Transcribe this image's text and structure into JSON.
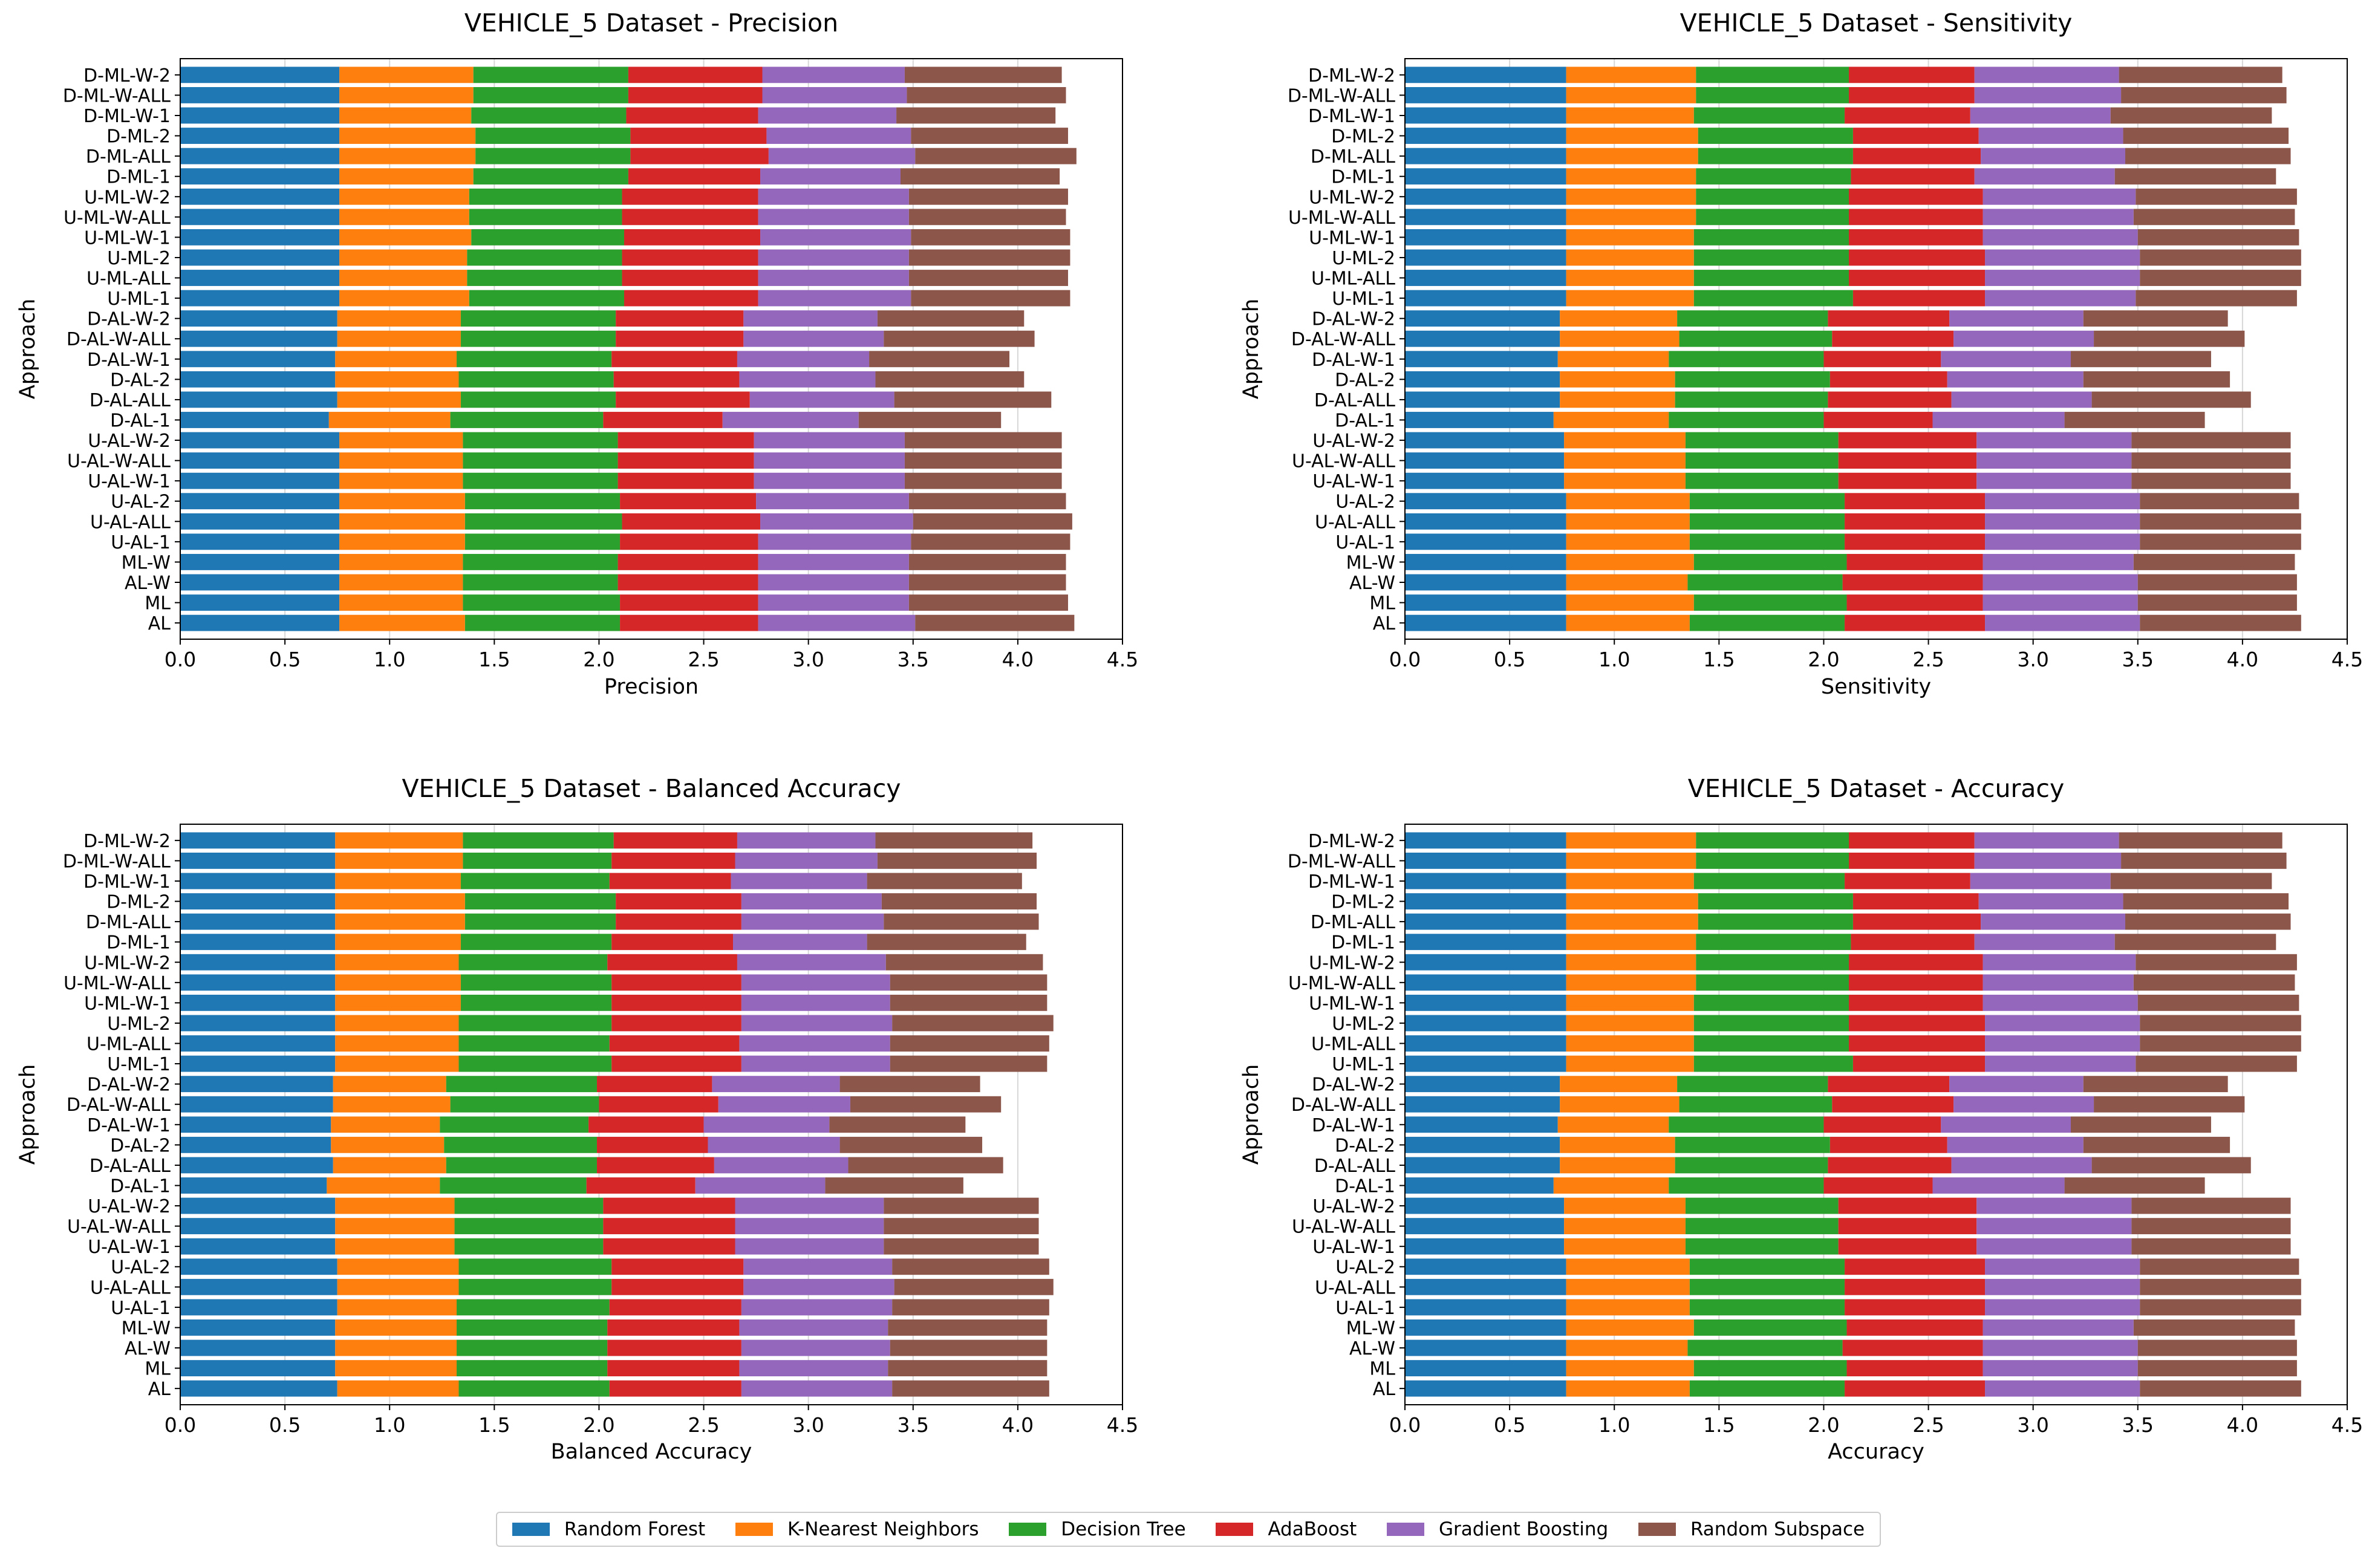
{
  "colors": [
    "#1f77b4",
    "#ff7f0e",
    "#2ca02c",
    "#d62728",
    "#9467bd",
    "#8c564b"
  ],
  "chart_data": [
    {
      "type": "stacked-barh",
      "title": "VEHICLE_5 Dataset - Precision",
      "xlabel": "Precision",
      "ylabel": "Approach",
      "xlim": [
        0,
        4.5
      ],
      "xticks": [
        "0.0",
        "0.5",
        "1.0",
        "1.5",
        "2.0",
        "2.5",
        "3.0",
        "3.5",
        "4.0",
        "4.5"
      ],
      "grid": "vertical",
      "categories": [
        "AL",
        "ML",
        "AL-W",
        "ML-W",
        "U-AL-1",
        "U-AL-ALL",
        "U-AL-2",
        "U-AL-W-1",
        "U-AL-W-ALL",
        "U-AL-W-2",
        "D-AL-1",
        "D-AL-ALL",
        "D-AL-2",
        "D-AL-W-1",
        "D-AL-W-ALL",
        "D-AL-W-2",
        "U-ML-1",
        "U-ML-ALL",
        "U-ML-2",
        "U-ML-W-1",
        "U-ML-W-ALL",
        "U-ML-W-2",
        "D-ML-1",
        "D-ML-ALL",
        "D-ML-2",
        "D-ML-W-1",
        "D-ML-W-ALL",
        "D-ML-W-2"
      ],
      "series": [
        {
          "name": "Random Forest",
          "values": [
            0.76,
            0.76,
            0.76,
            0.76,
            0.76,
            0.76,
            0.76,
            0.76,
            0.76,
            0.76,
            0.71,
            0.75,
            0.74,
            0.74,
            0.75,
            0.75,
            0.76,
            0.76,
            0.76,
            0.76,
            0.76,
            0.76,
            0.76,
            0.76,
            0.76,
            0.76,
            0.76,
            0.76
          ]
        },
        {
          "name": "K-Nearest Neighbors",
          "values": [
            0.6,
            0.59,
            0.59,
            0.59,
            0.6,
            0.6,
            0.6,
            0.59,
            0.59,
            0.59,
            0.58,
            0.59,
            0.59,
            0.58,
            0.59,
            0.59,
            0.62,
            0.61,
            0.61,
            0.63,
            0.62,
            0.62,
            0.64,
            0.65,
            0.65,
            0.63,
            0.64,
            0.64
          ]
        },
        {
          "name": "Decision Tree",
          "values": [
            0.74,
            0.75,
            0.74,
            0.74,
            0.74,
            0.75,
            0.74,
            0.74,
            0.74,
            0.74,
            0.73,
            0.74,
            0.74,
            0.74,
            0.74,
            0.74,
            0.74,
            0.74,
            0.74,
            0.73,
            0.73,
            0.73,
            0.74,
            0.74,
            0.74,
            0.74,
            0.74,
            0.74
          ]
        },
        {
          "name": "AdaBoost",
          "values": [
            0.66,
            0.66,
            0.67,
            0.67,
            0.66,
            0.66,
            0.65,
            0.65,
            0.65,
            0.65,
            0.57,
            0.64,
            0.6,
            0.6,
            0.61,
            0.61,
            0.64,
            0.65,
            0.65,
            0.65,
            0.65,
            0.65,
            0.63,
            0.66,
            0.65,
            0.63,
            0.64,
            0.64
          ]
        },
        {
          "name": "Gradient Boosting",
          "values": [
            0.75,
            0.72,
            0.72,
            0.72,
            0.73,
            0.73,
            0.73,
            0.72,
            0.72,
            0.72,
            0.65,
            0.69,
            0.65,
            0.63,
            0.67,
            0.64,
            0.73,
            0.72,
            0.72,
            0.72,
            0.72,
            0.72,
            0.67,
            0.7,
            0.69,
            0.66,
            0.69,
            0.68
          ]
        },
        {
          "name": "Random Subspace",
          "values": [
            0.76,
            0.76,
            0.75,
            0.75,
            0.76,
            0.76,
            0.75,
            0.75,
            0.75,
            0.75,
            0.68,
            0.75,
            0.71,
            0.67,
            0.72,
            0.7,
            0.76,
            0.76,
            0.77,
            0.76,
            0.75,
            0.76,
            0.76,
            0.77,
            0.75,
            0.76,
            0.76,
            0.75
          ]
        }
      ]
    },
    {
      "type": "stacked-barh",
      "title": "VEHICLE_5 Dataset - Sensitivity",
      "xlabel": "Sensitivity",
      "ylabel": "Approach",
      "xlim": [
        0,
        4.5
      ],
      "xticks": [
        "0.0",
        "0.5",
        "1.0",
        "1.5",
        "2.0",
        "2.5",
        "3.0",
        "3.5",
        "4.0",
        "4.5"
      ],
      "grid": "vertical",
      "categories": [
        "AL",
        "ML",
        "AL-W",
        "ML-W",
        "U-AL-1",
        "U-AL-ALL",
        "U-AL-2",
        "U-AL-W-1",
        "U-AL-W-ALL",
        "U-AL-W-2",
        "D-AL-1",
        "D-AL-ALL",
        "D-AL-2",
        "D-AL-W-1",
        "D-AL-W-ALL",
        "D-AL-W-2",
        "U-ML-1",
        "U-ML-ALL",
        "U-ML-2",
        "U-ML-W-1",
        "U-ML-W-ALL",
        "U-ML-W-2",
        "D-ML-1",
        "D-ML-ALL",
        "D-ML-2",
        "D-ML-W-1",
        "D-ML-W-ALL",
        "D-ML-W-2"
      ],
      "series": [
        {
          "name": "Random Forest",
          "values": [
            0.77,
            0.77,
            0.77,
            0.77,
            0.77,
            0.77,
            0.77,
            0.76,
            0.76,
            0.76,
            0.71,
            0.74,
            0.74,
            0.73,
            0.74,
            0.74,
            0.77,
            0.77,
            0.77,
            0.77,
            0.77,
            0.77,
            0.77,
            0.77,
            0.77,
            0.77,
            0.77,
            0.77
          ]
        },
        {
          "name": "K-Nearest Neighbors",
          "values": [
            0.59,
            0.61,
            0.58,
            0.61,
            0.59,
            0.59,
            0.59,
            0.58,
            0.58,
            0.58,
            0.55,
            0.55,
            0.55,
            0.53,
            0.57,
            0.56,
            0.61,
            0.61,
            0.61,
            0.61,
            0.62,
            0.62,
            0.62,
            0.63,
            0.63,
            0.61,
            0.62,
            0.62
          ]
        },
        {
          "name": "Decision Tree",
          "values": [
            0.74,
            0.73,
            0.74,
            0.73,
            0.74,
            0.74,
            0.74,
            0.73,
            0.73,
            0.73,
            0.74,
            0.73,
            0.74,
            0.74,
            0.73,
            0.72,
            0.76,
            0.74,
            0.74,
            0.74,
            0.73,
            0.73,
            0.74,
            0.74,
            0.74,
            0.72,
            0.73,
            0.73
          ]
        },
        {
          "name": "AdaBoost",
          "values": [
            0.67,
            0.65,
            0.67,
            0.65,
            0.67,
            0.67,
            0.67,
            0.66,
            0.66,
            0.66,
            0.52,
            0.59,
            0.56,
            0.56,
            0.58,
            0.58,
            0.63,
            0.65,
            0.65,
            0.64,
            0.64,
            0.64,
            0.59,
            0.61,
            0.6,
            0.6,
            0.6,
            0.6
          ]
        },
        {
          "name": "Gradient Boosting",
          "values": [
            0.74,
            0.74,
            0.74,
            0.72,
            0.74,
            0.74,
            0.74,
            0.74,
            0.74,
            0.74,
            0.63,
            0.67,
            0.65,
            0.62,
            0.67,
            0.64,
            0.72,
            0.74,
            0.74,
            0.74,
            0.72,
            0.73,
            0.67,
            0.69,
            0.69,
            0.67,
            0.7,
            0.69
          ]
        },
        {
          "name": "Random Subspace",
          "values": [
            0.77,
            0.76,
            0.76,
            0.77,
            0.77,
            0.77,
            0.76,
            0.76,
            0.76,
            0.76,
            0.67,
            0.76,
            0.7,
            0.67,
            0.72,
            0.69,
            0.77,
            0.77,
            0.77,
            0.77,
            0.77,
            0.77,
            0.77,
            0.79,
            0.79,
            0.77,
            0.79,
            0.78
          ]
        }
      ]
    },
    {
      "type": "stacked-barh",
      "title": "VEHICLE_5 Dataset - Balanced Accuracy",
      "xlabel": "Balanced Accuracy",
      "ylabel": "Approach",
      "xlim": [
        0,
        4.5
      ],
      "xticks": [
        "0.0",
        "0.5",
        "1.0",
        "1.5",
        "2.0",
        "2.5",
        "3.0",
        "3.5",
        "4.0",
        "4.5"
      ],
      "grid": "vertical",
      "categories": [
        "AL",
        "ML",
        "AL-W",
        "ML-W",
        "U-AL-1",
        "U-AL-ALL",
        "U-AL-2",
        "U-AL-W-1",
        "U-AL-W-ALL",
        "U-AL-W-2",
        "D-AL-1",
        "D-AL-ALL",
        "D-AL-2",
        "D-AL-W-1",
        "D-AL-W-ALL",
        "D-AL-W-2",
        "U-ML-1",
        "U-ML-ALL",
        "U-ML-2",
        "U-ML-W-1",
        "U-ML-W-ALL",
        "U-ML-W-2",
        "D-ML-1",
        "D-ML-ALL",
        "D-ML-2",
        "D-ML-W-1",
        "D-ML-W-ALL",
        "D-ML-W-2"
      ],
      "series": [
        {
          "name": "Random Forest",
          "values": [
            0.75,
            0.74,
            0.74,
            0.74,
            0.75,
            0.75,
            0.75,
            0.74,
            0.74,
            0.74,
            0.7,
            0.73,
            0.72,
            0.72,
            0.73,
            0.73,
            0.74,
            0.74,
            0.74,
            0.74,
            0.74,
            0.74,
            0.74,
            0.74,
            0.74,
            0.74,
            0.74,
            0.74
          ]
        },
        {
          "name": "K-Nearest Neighbors",
          "values": [
            0.58,
            0.58,
            0.58,
            0.58,
            0.57,
            0.58,
            0.58,
            0.57,
            0.57,
            0.57,
            0.54,
            0.54,
            0.54,
            0.52,
            0.56,
            0.54,
            0.59,
            0.59,
            0.59,
            0.6,
            0.6,
            0.59,
            0.6,
            0.62,
            0.62,
            0.6,
            0.61,
            0.61
          ]
        },
        {
          "name": "Decision Tree",
          "values": [
            0.72,
            0.72,
            0.72,
            0.72,
            0.73,
            0.73,
            0.73,
            0.71,
            0.71,
            0.71,
            0.7,
            0.72,
            0.73,
            0.71,
            0.71,
            0.72,
            0.73,
            0.72,
            0.73,
            0.72,
            0.72,
            0.71,
            0.72,
            0.72,
            0.72,
            0.71,
            0.71,
            0.72
          ]
        },
        {
          "name": "AdaBoost",
          "values": [
            0.63,
            0.63,
            0.64,
            0.63,
            0.63,
            0.63,
            0.63,
            0.63,
            0.63,
            0.63,
            0.52,
            0.56,
            0.53,
            0.55,
            0.57,
            0.55,
            0.62,
            0.62,
            0.62,
            0.62,
            0.62,
            0.62,
            0.58,
            0.6,
            0.6,
            0.58,
            0.59,
            0.59
          ]
        },
        {
          "name": "Gradient Boosting",
          "values": [
            0.72,
            0.71,
            0.71,
            0.71,
            0.72,
            0.72,
            0.71,
            0.71,
            0.71,
            0.71,
            0.62,
            0.64,
            0.63,
            0.6,
            0.63,
            0.61,
            0.71,
            0.72,
            0.72,
            0.71,
            0.71,
            0.71,
            0.64,
            0.68,
            0.67,
            0.65,
            0.68,
            0.66
          ]
        },
        {
          "name": "Random Subspace",
          "values": [
            0.75,
            0.76,
            0.75,
            0.76,
            0.75,
            0.76,
            0.75,
            0.74,
            0.74,
            0.74,
            0.66,
            0.74,
            0.68,
            0.65,
            0.72,
            0.67,
            0.75,
            0.76,
            0.77,
            0.75,
            0.75,
            0.75,
            0.76,
            0.74,
            0.74,
            0.74,
            0.76,
            0.75
          ]
        }
      ]
    },
    {
      "type": "stacked-barh",
      "title": "VEHICLE_5 Dataset - Accuracy",
      "xlabel": "Accuracy",
      "ylabel": "Approach",
      "xlim": [
        0,
        4.5
      ],
      "xticks": [
        "0.0",
        "0.5",
        "1.0",
        "1.5",
        "2.0",
        "2.5",
        "3.0",
        "3.5",
        "4.0",
        "4.5"
      ],
      "grid": "vertical",
      "categories": [
        "AL",
        "ML",
        "AL-W",
        "ML-W",
        "U-AL-1",
        "U-AL-ALL",
        "U-AL-2",
        "U-AL-W-1",
        "U-AL-W-ALL",
        "U-AL-W-2",
        "D-AL-1",
        "D-AL-ALL",
        "D-AL-2",
        "D-AL-W-1",
        "D-AL-W-ALL",
        "D-AL-W-2",
        "U-ML-1",
        "U-ML-ALL",
        "U-ML-2",
        "U-ML-W-1",
        "U-ML-W-ALL",
        "U-ML-W-2",
        "D-ML-1",
        "D-ML-ALL",
        "D-ML-2",
        "D-ML-W-1",
        "D-ML-W-ALL",
        "D-ML-W-2"
      ],
      "series": [
        {
          "name": "Random Forest",
          "values": [
            0.77,
            0.77,
            0.77,
            0.77,
            0.77,
            0.77,
            0.77,
            0.76,
            0.76,
            0.76,
            0.71,
            0.74,
            0.74,
            0.73,
            0.74,
            0.74,
            0.77,
            0.77,
            0.77,
            0.77,
            0.77,
            0.77,
            0.77,
            0.77,
            0.77,
            0.77,
            0.77,
            0.77
          ]
        },
        {
          "name": "K-Nearest Neighbors",
          "values": [
            0.59,
            0.61,
            0.58,
            0.61,
            0.59,
            0.59,
            0.59,
            0.58,
            0.58,
            0.58,
            0.55,
            0.55,
            0.55,
            0.53,
            0.57,
            0.56,
            0.61,
            0.61,
            0.61,
            0.61,
            0.62,
            0.62,
            0.62,
            0.63,
            0.63,
            0.61,
            0.62,
            0.62
          ]
        },
        {
          "name": "Decision Tree",
          "values": [
            0.74,
            0.73,
            0.74,
            0.73,
            0.74,
            0.74,
            0.74,
            0.73,
            0.73,
            0.73,
            0.74,
            0.73,
            0.74,
            0.74,
            0.73,
            0.72,
            0.76,
            0.74,
            0.74,
            0.74,
            0.73,
            0.73,
            0.74,
            0.74,
            0.74,
            0.72,
            0.73,
            0.73
          ]
        },
        {
          "name": "AdaBoost",
          "values": [
            0.67,
            0.65,
            0.67,
            0.65,
            0.67,
            0.67,
            0.67,
            0.66,
            0.66,
            0.66,
            0.52,
            0.59,
            0.56,
            0.56,
            0.58,
            0.58,
            0.63,
            0.65,
            0.65,
            0.64,
            0.64,
            0.64,
            0.59,
            0.61,
            0.6,
            0.6,
            0.6,
            0.6
          ]
        },
        {
          "name": "Gradient Boosting",
          "values": [
            0.74,
            0.74,
            0.74,
            0.72,
            0.74,
            0.74,
            0.74,
            0.74,
            0.74,
            0.74,
            0.63,
            0.67,
            0.65,
            0.62,
            0.67,
            0.64,
            0.72,
            0.74,
            0.74,
            0.74,
            0.72,
            0.73,
            0.67,
            0.69,
            0.69,
            0.67,
            0.7,
            0.69
          ]
        },
        {
          "name": "Random Subspace",
          "values": [
            0.77,
            0.76,
            0.76,
            0.77,
            0.77,
            0.77,
            0.76,
            0.76,
            0.76,
            0.76,
            0.67,
            0.76,
            0.7,
            0.67,
            0.72,
            0.69,
            0.77,
            0.77,
            0.77,
            0.77,
            0.77,
            0.77,
            0.77,
            0.79,
            0.79,
            0.77,
            0.79,
            0.78
          ]
        }
      ]
    }
  ],
  "legend": [
    "Random Forest",
    "K-Nearest Neighbors",
    "Decision Tree",
    "AdaBoost",
    "Gradient Boosting",
    "Random Subspace"
  ]
}
